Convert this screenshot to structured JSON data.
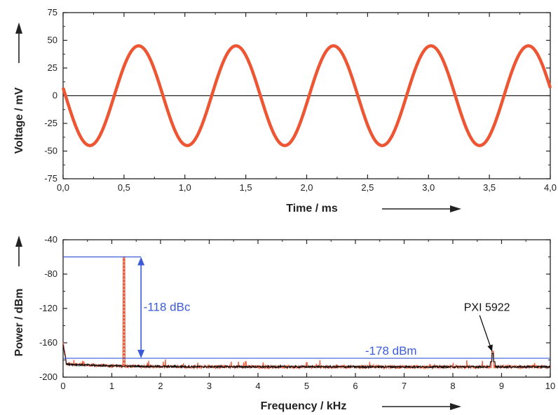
{
  "colors": {
    "trace": "#ee5533",
    "spectrum_noise": "#111111",
    "annotation": "#3b5bd9",
    "axis": "#222222"
  },
  "chart_data": [
    {
      "type": "line",
      "title": "",
      "xlabel": "Time / ms",
      "ylabel": "Voltage / mV",
      "xlim": [
        0.0,
        4.0
      ],
      "ylim": [
        -75,
        75
      ],
      "xticks": [
        "0,0",
        "0,5",
        "1,0",
        "1,5",
        "2,0",
        "2,5",
        "3,0",
        "3,5",
        "4,0"
      ],
      "xtick_values": [
        0.0,
        0.5,
        1.0,
        1.5,
        2.0,
        2.5,
        3.0,
        3.5,
        4.0
      ],
      "yticks": [
        "75",
        "50",
        "25",
        "0",
        "-25",
        "-50",
        "-75"
      ],
      "ytick_values": [
        75,
        50,
        25,
        0,
        -25,
        -50,
        -75
      ],
      "grid": false,
      "zero_line": true,
      "series": [
        {
          "kind": "sine",
          "amplitude_mV": 45,
          "frequency_kHz": 1.25,
          "peak_times_ms": [
            0.62,
            1.42,
            2.22,
            3.02,
            3.82
          ],
          "trough_times_ms": [
            0.22,
            1.02,
            1.82,
            2.62,
            3.42
          ]
        }
      ]
    },
    {
      "type": "line",
      "title": "",
      "xlabel": "Frequency / kHz",
      "ylabel": "Power / dBm",
      "xlim": [
        0,
        10
      ],
      "ylim": [
        -200,
        -40
      ],
      "xticks": [
        "0",
        "1",
        "2",
        "3",
        "4",
        "5",
        "6",
        "7",
        "8",
        "9",
        "10"
      ],
      "xtick_values": [
        0,
        1,
        2,
        3,
        4,
        5,
        6,
        7,
        8,
        9,
        10
      ],
      "yticks": [
        "-40",
        "-80",
        "-120",
        "-160",
        "-200"
      ],
      "ytick_values": [
        -40,
        -80,
        -120,
        -160,
        -200
      ],
      "grid": false,
      "series": [
        {
          "kind": "spectrum",
          "fundamental_kHz": 1.25,
          "fundamental_dBm": -60,
          "noise_floor_dBm": -188,
          "spur_kHz": 8.82,
          "spur_dBm": -172
        }
      ],
      "reference_lines_dBm": [
        -60,
        -178
      ],
      "annotations": [
        {
          "text": "-118 dBc",
          "x_kHz": 1.65,
          "y_dBm": -123
        },
        {
          "text": "-178 dBm",
          "x_kHz": 6.2,
          "y_dBm": -174
        },
        {
          "text": "PXI 5922",
          "x_kHz": 8.7,
          "y_dBm": -123
        }
      ]
    }
  ]
}
